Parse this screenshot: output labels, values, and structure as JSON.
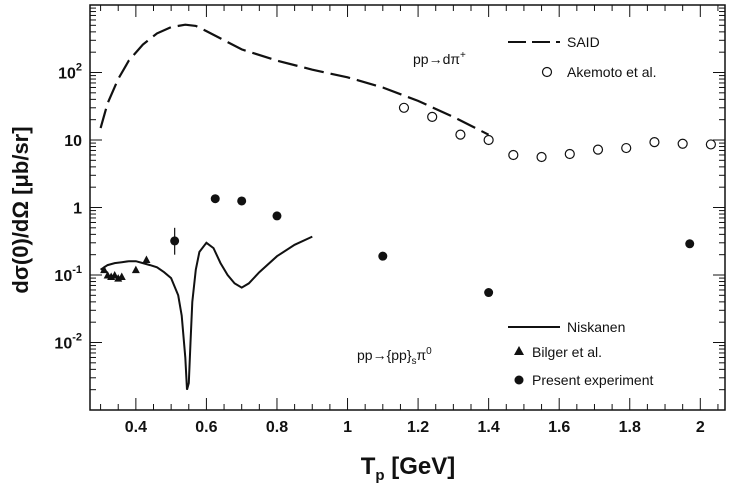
{
  "chart_data": {
    "type": "line",
    "xlabel": "T",
    "xlabel_sub": "p",
    "xlabel_unit": " [GeV]",
    "ylabel": "dσ(0)/dΩ [μb/sr]",
    "xlim": [
      0.27,
      2.07
    ],
    "ylim": [
      0.001,
      1000
    ],
    "yscale": "log",
    "x_ticks": [
      "0.4",
      "0.6",
      "0.8",
      "1",
      "1.2",
      "1.4",
      "1.6",
      "1.8",
      "2"
    ],
    "y_ticks": [
      {
        "base": "10",
        "exp": "-2",
        "value": 0.01
      },
      {
        "base": "10",
        "exp": "-1",
        "value": 0.1
      },
      {
        "base": "1",
        "exp": "",
        "value": 1
      },
      {
        "base": "10",
        "exp": "",
        "value": 10
      },
      {
        "base": "10",
        "exp": "2",
        "value": 100
      }
    ],
    "reaction_labels": {
      "dpi": {
        "main": "pp→dπ",
        "sup": "+"
      },
      "pppi": {
        "main": "pp→{pp}",
        "sub": "s",
        "tail": "π",
        "sup": "0"
      }
    },
    "series": [
      {
        "name": "SAID",
        "style": "dashed",
        "x": [
          0.3,
          0.32,
          0.35,
          0.38,
          0.42,
          0.46,
          0.5,
          0.54,
          0.57,
          0.6,
          0.65,
          0.7,
          0.8,
          0.9,
          1.0,
          1.1,
          1.2,
          1.3,
          1.4
        ],
        "y": [
          15,
          35,
          80,
          150,
          260,
          380,
          470,
          510,
          490,
          410,
          300,
          220,
          150,
          110,
          85,
          60,
          38,
          22,
          12
        ]
      },
      {
        "name": "Akemoto et al.",
        "style": "open-circle",
        "x": [
          1.16,
          1.24,
          1.32,
          1.4,
          1.47,
          1.55,
          1.63,
          1.71,
          1.79,
          1.87,
          1.95,
          2.03
        ],
        "y": [
          30,
          22,
          12,
          10,
          6,
          5.6,
          6.2,
          7.2,
          7.6,
          9.3,
          8.8,
          8.6
        ]
      },
      {
        "name": "Niskanen",
        "style": "solid",
        "x": [
          0.3,
          0.32,
          0.34,
          0.36,
          0.38,
          0.4,
          0.42,
          0.44,
          0.46,
          0.48,
          0.5,
          0.52,
          0.53,
          0.54,
          0.545,
          0.55,
          0.555,
          0.56,
          0.57,
          0.58,
          0.6,
          0.62,
          0.64,
          0.66,
          0.68,
          0.7,
          0.72,
          0.75,
          0.8,
          0.85,
          0.9
        ],
        "y": [
          0.12,
          0.14,
          0.15,
          0.155,
          0.16,
          0.16,
          0.15,
          0.14,
          0.13,
          0.11,
          0.09,
          0.05,
          0.025,
          0.006,
          0.002,
          0.0025,
          0.01,
          0.04,
          0.12,
          0.22,
          0.3,
          0.25,
          0.15,
          0.1,
          0.075,
          0.065,
          0.075,
          0.11,
          0.19,
          0.28,
          0.37
        ]
      },
      {
        "name": "Bilger et al.",
        "style": "triangle",
        "x": [
          0.31,
          0.32,
          0.33,
          0.34,
          0.35,
          0.36,
          0.4,
          0.43
        ],
        "y": [
          0.12,
          0.1,
          0.095,
          0.1,
          0.09,
          0.095,
          0.12,
          0.17
        ]
      },
      {
        "name": "Present experiment",
        "style": "filled-circle",
        "x": [
          0.51,
          0.625,
          0.7,
          0.8,
          1.1,
          1.4,
          1.97
        ],
        "y": [
          0.32,
          1.35,
          1.25,
          0.75,
          0.19,
          0.055,
          0.29
        ],
        "yerr_low": [
          0.2,
          0,
          0,
          0,
          0,
          0,
          0
        ],
        "yerr_high": [
          0.5,
          0,
          0,
          0,
          0,
          0,
          0
        ]
      }
    ]
  }
}
